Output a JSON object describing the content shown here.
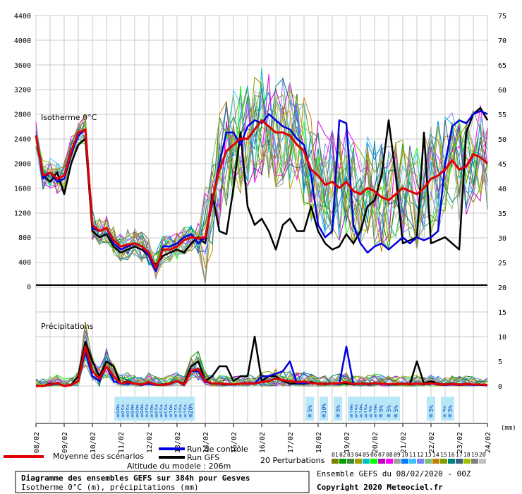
{
  "chart_data": {
    "type": "line",
    "title": "Diagramme des ensembles GEFS sur 384h pour Gesves",
    "subtitle": "Isotherme 0°C (m), précipitations (mm)",
    "model_altitude": "Altitude du modele : 206m",
    "run_info": "Ensemble GEFS du 08/02/2020 - 00Z",
    "copyright": "Copyright 2020 Meteociel.fr",
    "x_unit": "(mm)",
    "upper_panel_label": "Isotherme 0°C",
    "lower_panel_label": "Précipitations",
    "dates": [
      "08/02",
      "09/02",
      "10/02",
      "11/02",
      "12/02",
      "13/02",
      "14/02",
      "15/02",
      "16/02",
      "17/02",
      "18/02",
      "19/02",
      "20/02",
      "21/02",
      "22/02",
      "23/02",
      "24/02"
    ],
    "left_axis_ticks": [
      "4400",
      "4000",
      "3600",
      "3200",
      "2800",
      "2400",
      "2000",
      "1600",
      "1200",
      "800",
      "400",
      "0"
    ],
    "right_axis_ticks": [
      "75",
      "70",
      "65",
      "60",
      "55",
      "50",
      "45",
      "40",
      "35",
      "30",
      "25",
      "20",
      "15",
      "10",
      "5",
      "0"
    ],
    "upper_ylim": [
      0,
      4400
    ],
    "precip_ylim": [
      0,
      20
    ],
    "legend": {
      "mean_label": "Moyenne des scénarios",
      "control_label": "Run de contrôle",
      "gfs_label": "Run GFS",
      "perturbations_label": "20 Perturbations",
      "member_numbers": [
        "01",
        "02",
        "03",
        "04",
        "05",
        "06",
        "07",
        "08",
        "09",
        "10",
        "11",
        "12",
        "13",
        "14",
        "15",
        "16",
        "17",
        "18",
        "19",
        "20"
      ],
      "member_colors": [
        "#808000",
        "#00a000",
        "#3c8c3c",
        "#a0a000",
        "#00c0c0",
        "#00ff00",
        "#c000c0",
        "#ff00ff",
        "#a0a0a0",
        "#0080ff",
        "#40c0ff",
        "#8080ff",
        "#80c080",
        "#c08000",
        "#80a000",
        "#008080",
        "#406080",
        "#a0c000",
        "#808080",
        "#c0c0c0"
      ],
      "mean_color": "#e00000",
      "control_color": "#0000e0",
      "gfs_color": "#000000"
    },
    "snow_markers": [
      {
        "day": 2.93,
        "pct": "90%"
      },
      {
        "day": 3.1,
        "pct": "95%"
      },
      {
        "day": 3.27,
        "pct": "95%"
      },
      {
        "day": 3.44,
        "pct": "90%"
      },
      {
        "day": 3.61,
        "pct": "90%"
      },
      {
        "day": 3.78,
        "pct": "90%"
      },
      {
        "day": 3.95,
        "pct": "45%"
      },
      {
        "day": 4.12,
        "pct": "30%"
      },
      {
        "day": 4.29,
        "pct": "65%"
      },
      {
        "day": 4.46,
        "pct": "55%"
      },
      {
        "day": 4.63,
        "pct": "55%"
      },
      {
        "day": 4.8,
        "pct": "20%"
      },
      {
        "day": 4.97,
        "pct": "15%"
      },
      {
        "day": 5.14,
        "pct": "35%"
      },
      {
        "day": 5.31,
        "pct": "25%"
      },
      {
        "day": 5.48,
        "pct": "20%"
      },
      {
        "day": 9.7,
        "pct": "5%"
      },
      {
        "day": 10.2,
        "pct": "10%"
      },
      {
        "day": 10.7,
        "pct": "5%"
      },
      {
        "day": 11.2,
        "pct": "10%"
      },
      {
        "day": 11.37,
        "pct": "15%"
      },
      {
        "day": 11.54,
        "pct": "10%"
      },
      {
        "day": 11.71,
        "pct": "15%"
      },
      {
        "day": 11.88,
        "pct": "5%"
      },
      {
        "day": 12.05,
        "pct": "10%"
      },
      {
        "day": 12.22,
        "pct": "5%"
      },
      {
        "day": 12.5,
        "pct": "5%"
      },
      {
        "day": 12.75,
        "pct": "5%"
      },
      {
        "day": 14.0,
        "pct": "5%"
      },
      {
        "day": 14.5,
        "pct": "5%"
      },
      {
        "day": 14.67,
        "pct": "5%"
      }
    ],
    "series": [
      {
        "name": "Moyenne des scénarios",
        "color": "#e00000",
        "x": [
          0,
          0.25,
          0.5,
          0.75,
          1,
          1.25,
          1.5,
          1.75,
          2,
          2.25,
          2.5,
          2.75,
          3,
          3.25,
          3.5,
          3.75,
          4,
          4.25,
          4.5,
          4.75,
          5,
          5.25,
          5.5,
          5.75,
          6,
          6.25,
          6.5,
          6.75,
          7,
          7.25,
          7.5,
          7.75,
          8,
          8.25,
          8.5,
          8.75,
          9,
          9.25,
          9.5,
          9.75,
          10,
          10.25,
          10.5,
          10.75,
          11,
          11.25,
          11.5,
          11.75,
          12,
          12.25,
          12.5,
          12.75,
          13,
          13.25,
          13.5,
          13.75,
          14,
          14.25,
          14.5,
          14.75,
          15,
          15.25,
          15.5,
          15.75,
          16
        ],
        "y": [
          2450,
          1800,
          1850,
          1750,
          1800,
          2200,
          2500,
          2550,
          1000,
          900,
          950,
          750,
          650,
          680,
          700,
          650,
          550,
          300,
          600,
          600,
          650,
          750,
          800,
          780,
          800,
          1400,
          1900,
          2200,
          2300,
          2400,
          2400,
          2550,
          2700,
          2600,
          2500,
          2500,
          2450,
          2300,
          2200,
          1900,
          1800,
          1650,
          1700,
          1600,
          1700,
          1550,
          1500,
          1600,
          1550,
          1450,
          1400,
          1500,
          1600,
          1550,
          1500,
          1600,
          1750,
          1800,
          1900,
          2050,
          1900,
          1950,
          2150,
          2100,
          2000
        ]
      },
      {
        "name": "Run de contrôle",
        "color": "#0000e0",
        "x": [
          0,
          0.25,
          0.5,
          0.75,
          1,
          1.25,
          1.5,
          1.75,
          2,
          2.25,
          2.5,
          2.75,
          3,
          3.25,
          3.5,
          3.75,
          4,
          4.25,
          4.5,
          4.75,
          5,
          5.25,
          5.5,
          5.75,
          6,
          6.25,
          6.5,
          6.75,
          7,
          7.25,
          7.5,
          7.75,
          8,
          8.25,
          8.5,
          8.75,
          9,
          9.25,
          9.5,
          9.75,
          10,
          10.25,
          10.5,
          10.75,
          11,
          11.25,
          11.5,
          11.75,
          12,
          12.25,
          12.5,
          12.75,
          13,
          13.25,
          13.5,
          13.75,
          14,
          14.25,
          14.5,
          14.75,
          15,
          15.25,
          15.5,
          15.75,
          16
        ],
        "y": [
          2450,
          1750,
          1850,
          1700,
          1750,
          2150,
          2450,
          2550,
          950,
          900,
          950,
          700,
          600,
          650,
          700,
          650,
          500,
          250,
          650,
          650,
          700,
          800,
          850,
          700,
          800,
          1350,
          2000,
          2500,
          2500,
          2300,
          2600,
          2700,
          2650,
          2800,
          2700,
          2600,
          2550,
          2400,
          2300,
          1800,
          1000,
          800,
          900,
          2700,
          2650,
          1000,
          700,
          550,
          650,
          700,
          600,
          700,
          800,
          700,
          800,
          750,
          800,
          900,
          2000,
          2600,
          2700,
          2650,
          2800,
          2850,
          2800
        ]
      },
      {
        "name": "Run GFS",
        "color": "#000000",
        "x": [
          0,
          0.25,
          0.5,
          0.75,
          1,
          1.25,
          1.5,
          1.75,
          2,
          2.25,
          2.5,
          2.75,
          3,
          3.25,
          3.5,
          3.75,
          4,
          4.25,
          4.5,
          4.75,
          5,
          5.25,
          5.5,
          5.75,
          6,
          6.25,
          6.5,
          6.75,
          7,
          7.25,
          7.5,
          7.75,
          8,
          8.25,
          8.5,
          8.75,
          9,
          9.25,
          9.5,
          9.75,
          10,
          10.25,
          10.5,
          10.75,
          11,
          11.25,
          11.5,
          11.75,
          12,
          12.25,
          12.5,
          12.75,
          13,
          13.25,
          13.5,
          13.75,
          14,
          14.25,
          14.5,
          14.75,
          15,
          15.25,
          15.5,
          15.75,
          16
        ],
        "y": [
          2450,
          1800,
          1700,
          1850,
          1500,
          2000,
          2300,
          2400,
          900,
          800,
          850,
          650,
          550,
          600,
          650,
          600,
          500,
          350,
          500,
          550,
          600,
          550,
          700,
          800,
          700,
          1500,
          900,
          850,
          1600,
          2500,
          1300,
          1000,
          1100,
          900,
          600,
          1000,
          1100,
          900,
          900,
          1300,
          900,
          700,
          600,
          650,
          850,
          700,
          900,
          1300,
          1400,
          1800,
          2700,
          1800,
          700,
          750,
          800,
          2500,
          700,
          750,
          800,
          700,
          600,
          2500,
          2800,
          2900,
          2700
        ]
      }
    ],
    "precip_series": [
      {
        "name": "Moyenne des scénarios",
        "color": "#e00000",
        "x": [
          0,
          0.25,
          0.5,
          0.75,
          1,
          1.25,
          1.5,
          1.75,
          2,
          2.25,
          2.5,
          2.75,
          3,
          3.25,
          3.5,
          3.75,
          4,
          4.25,
          4.5,
          4.75,
          5,
          5.25,
          5.5,
          5.75,
          6,
          6.25,
          6.5,
          6.75,
          7,
          7.25,
          7.5,
          7.75,
          8,
          8.25,
          8.5,
          8.75,
          9,
          9.25,
          9.5,
          9.75,
          10,
          10.25,
          10.5,
          10.75,
          11,
          11.25,
          11.5,
          11.75,
          12,
          12.25,
          12.5,
          12.75,
          13,
          13.25,
          13.5,
          13.75,
          14,
          14.25,
          14.5,
          14.75,
          15,
          15.25,
          15.5,
          15.75,
          16
        ],
        "y": [
          0,
          0,
          0.3,
          0.6,
          0,
          0.2,
          1,
          8,
          3,
          1.5,
          4,
          2,
          0.5,
          0.8,
          0.5,
          0.3,
          0.8,
          0.3,
          0.2,
          0.5,
          1,
          0.3,
          3,
          3.5,
          1,
          0.5,
          0.5,
          0.4,
          0.3,
          0.5,
          0.6,
          0.5,
          0.8,
          1,
          1.5,
          1.2,
          1,
          0.8,
          0.9,
          0.6,
          0.5,
          0.4,
          0.5,
          0.6,
          0.8,
          0.4,
          0.5,
          0.4,
          0.6,
          0.5,
          0.4,
          0.4,
          0.5,
          0.4,
          0.5,
          0.4,
          0.6,
          0.4,
          0.3,
          0.4,
          0.3,
          0.4,
          0.3,
          0.3,
          0.2
        ]
      },
      {
        "name": "Run de contrôle",
        "color": "#0000e0",
        "x": [
          0,
          0.25,
          0.5,
          0.75,
          1,
          1.25,
          1.5,
          1.75,
          2,
          2.25,
          2.5,
          2.75,
          3,
          3.25,
          3.5,
          3.75,
          4,
          4.25,
          4.5,
          4.75,
          5,
          5.25,
          5.5,
          5.75,
          6,
          6.25,
          6.5,
          6.75,
          7,
          7.25,
          7.5,
          7.75,
          8,
          8.25,
          8.5,
          8.75,
          9,
          9.25,
          9.5,
          9.75,
          10,
          10.25,
          10.5,
          10.75,
          11,
          11.25,
          11.5,
          11.75,
          12,
          12.25,
          12.5,
          12.75,
          13,
          13.25,
          13.5,
          13.75,
          14,
          14.25,
          14.5,
          14.75,
          15,
          15.25,
          15.5,
          15.75,
          16
        ],
        "y": [
          0,
          0,
          0.2,
          0.5,
          0,
          0.2,
          1,
          7,
          2,
          1,
          4,
          1,
          0.5,
          0.5,
          0.5,
          0.2,
          0.5,
          0.2,
          0.2,
          0.4,
          1,
          0.2,
          3,
          3,
          0.8,
          0.5,
          0.4,
          0.3,
          0.3,
          0.5,
          0.5,
          0.5,
          2,
          2,
          2.5,
          3,
          5,
          0.5,
          0.5,
          0.5,
          0.5,
          0.3,
          0.5,
          0.4,
          8,
          0.3,
          0.5,
          0.3,
          0.5,
          0.5,
          0.3,
          0.3,
          0.5,
          0.3,
          0.5,
          0.3,
          0.5,
          0.3,
          0.2,
          0.3,
          0.2,
          0.3,
          0.2,
          0.2,
          0.1
        ]
      },
      {
        "name": "Run GFS",
        "color": "#000000",
        "x": [
          0,
          0.25,
          0.5,
          0.75,
          1,
          1.25,
          1.5,
          1.75,
          2,
          2.25,
          2.5,
          2.75,
          3,
          3.25,
          3.5,
          3.75,
          4,
          4.25,
          4.5,
          4.75,
          5,
          5.25,
          5.5,
          5.75,
          6,
          6.25,
          6.5,
          6.75,
          7,
          7.25,
          7.5,
          7.75,
          8,
          8.25,
          8.5,
          8.75,
          9,
          9.25,
          9.5,
          9.75,
          10,
          10.25,
          10.5,
          10.75,
          11,
          11.25,
          11.5,
          11.75,
          12,
          12.25,
          12.5,
          12.75,
          13,
          13.25,
          13.5,
          13.75,
          14,
          14.25,
          14.5,
          14.75,
          15,
          15.25,
          15.5,
          15.75,
          16
        ],
        "y": [
          0,
          0,
          0.5,
          0.5,
          0,
          0.3,
          2,
          9,
          5,
          2,
          5,
          4,
          0.5,
          1,
          0.5,
          0.3,
          0.5,
          0.3,
          0.3,
          0.5,
          1,
          0.5,
          4,
          5,
          1,
          2,
          4,
          4,
          1,
          2,
          2,
          10,
          1,
          2,
          2,
          1,
          0.5,
          0.5,
          0.5,
          0.8,
          0.5,
          0.5,
          0.5,
          0.5,
          0.5,
          0.3,
          0.5,
          0.5,
          0.5,
          0.5,
          0.3,
          0.3,
          0.5,
          0.3,
          5,
          0.5,
          1,
          0.5,
          0.3,
          0.5,
          0.3,
          0.3,
          0.3,
          0.3,
          0.2
        ]
      }
    ]
  }
}
